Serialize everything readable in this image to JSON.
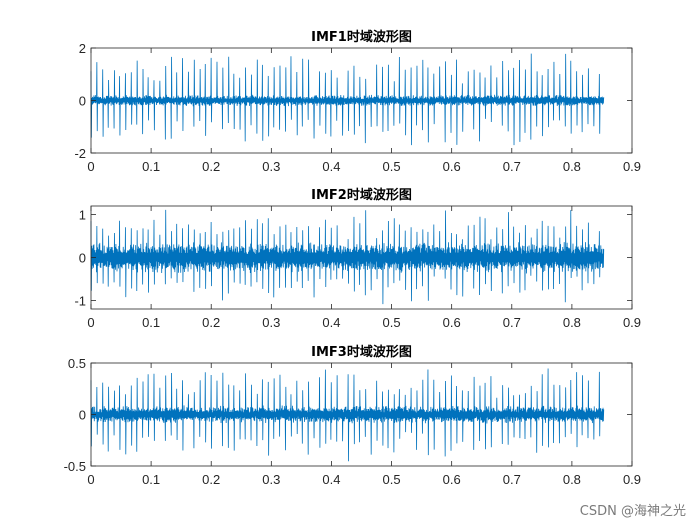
{
  "watermark": "CSDN @海神之光",
  "chart_data": [
    {
      "type": "line",
      "title": "IMF1时域波形图",
      "xlabel": "",
      "ylabel": "",
      "xlim": [
        0,
        0.9
      ],
      "ylim": [
        -2,
        2
      ],
      "xticks": [
        0,
        0.1,
        0.2,
        0.3,
        0.4,
        0.5,
        0.6,
        0.7,
        0.8,
        0.9
      ],
      "yticks": [
        -2,
        0,
        2
      ],
      "xtick_labels": [
        "0",
        "0.1",
        "0.2",
        "0.3",
        "0.4",
        "0.5",
        "0.6",
        "0.7",
        "0.8",
        "0.9"
      ],
      "ytick_labels": [
        "-2",
        "0",
        "2"
      ],
      "grid": false,
      "series": [
        {
          "color": "#0072bd",
          "x_range": [
            0,
            0.853
          ],
          "description_values": {
            "baseline_amplitude": 0.15,
            "spike_amplitude": 1.9,
            "spike_period": 0.0095
          },
          "values_summary": {
            "min": -2,
            "max": 2
          }
        }
      ]
    },
    {
      "type": "line",
      "title": "IMF2时域波形图",
      "xlabel": "",
      "ylabel": "",
      "xlim": [
        0,
        0.9
      ],
      "ylim": [
        -1.2,
        1.2
      ],
      "xticks": [
        0,
        0.1,
        0.2,
        0.3,
        0.4,
        0.5,
        0.6,
        0.7,
        0.8,
        0.9
      ],
      "yticks": [
        -1,
        0,
        1
      ],
      "xtick_labels": [
        "0",
        "0.1",
        "0.2",
        "0.3",
        "0.4",
        "0.5",
        "0.6",
        "0.7",
        "0.8",
        "0.9"
      ],
      "ytick_labels": [
        "-1",
        "0",
        "1"
      ],
      "grid": false,
      "series": [
        {
          "color": "#0072bd",
          "x_range": [
            0,
            0.853
          ],
          "description_values": {
            "baseline_amplitude": 0.25,
            "spike_amplitude": 1.15,
            "spike_period": 0.0095
          },
          "values_summary": {
            "min": -1.2,
            "max": 1.2
          }
        }
      ]
    },
    {
      "type": "line",
      "title": "IMF3时域波形图",
      "xlabel": "",
      "ylabel": "",
      "xlim": [
        0,
        0.9
      ],
      "ylim": [
        -0.5,
        0.5
      ],
      "xticks": [
        0,
        0.1,
        0.2,
        0.3,
        0.4,
        0.5,
        0.6,
        0.7,
        0.8,
        0.9
      ],
      "yticks": [
        -0.5,
        0,
        0.5
      ],
      "xtick_labels": [
        "0",
        "0.1",
        "0.2",
        "0.3",
        "0.4",
        "0.5",
        "0.6",
        "0.7",
        "0.8",
        "0.9"
      ],
      "ytick_labels": [
        "-0.5",
        "0",
        "0.5"
      ],
      "grid": false,
      "series": [
        {
          "color": "#0072bd",
          "x_range": [
            0,
            0.853
          ],
          "description_values": {
            "baseline_amplitude": 0.06,
            "spike_amplitude": 0.47,
            "spike_period": 0.0095
          },
          "values_summary": {
            "min": -0.5,
            "max": 0.5
          }
        }
      ]
    }
  ]
}
